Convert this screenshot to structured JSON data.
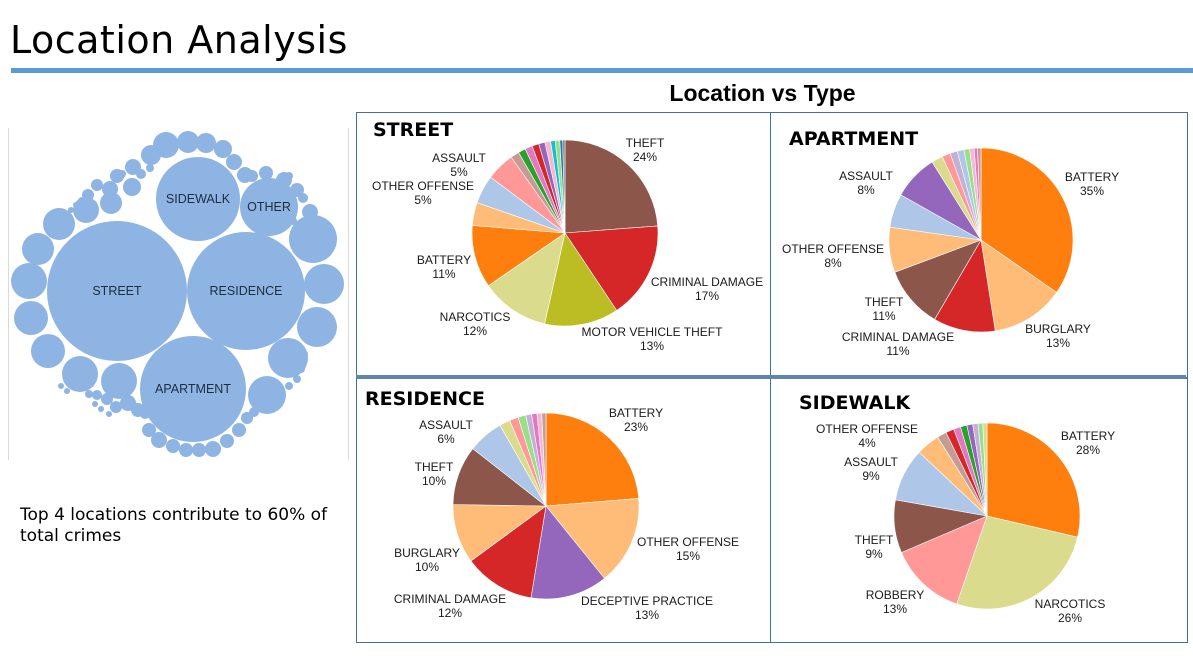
{
  "page": {
    "title": "Location Analysis",
    "section_title": "Location vs Type",
    "summary": "Top 4 locations contribute to 60% of total crimes"
  },
  "colors": {
    "accent": "#5b9bd5",
    "bubble": "#8eb4e3",
    "panel_border": "#41729b"
  },
  "chart_data": [
    {
      "type": "bubble",
      "labels": [
        "STREET",
        "RESIDENCE",
        "APARTMENT",
        "SIDEWALK",
        "OTHER"
      ]
    },
    {
      "type": "pie",
      "title": "STREET",
      "slices": [
        {
          "label": "THEFT",
          "value": 24,
          "color": "#8c564b",
          "show": true
        },
        {
          "label": "CRIMINAL DAMAGE",
          "value": 17,
          "color": "#d62728",
          "show": true
        },
        {
          "label": "MOTOR VEHICLE THEFT",
          "value": 13,
          "color": "#bcbd22",
          "show": true
        },
        {
          "label": "NARCOTICS",
          "value": 12,
          "color": "#dbdb8d",
          "show": true
        },
        {
          "label": "BATTERY",
          "value": 11,
          "color": "#ff7f0e",
          "show": true
        },
        {
          "label": "",
          "value": 4,
          "color": "#ffbb78",
          "show": false
        },
        {
          "label": "OTHER OFFENSE",
          "value": 5,
          "color": "#aec7e8",
          "show": true
        },
        {
          "label": "ASSAULT",
          "value": 5,
          "color": "#ff9896",
          "show": true
        },
        {
          "label": "",
          "value": 1.5,
          "color": "#c49c94",
          "show": false
        },
        {
          "label": "",
          "value": 1.3,
          "color": "#2ca02c",
          "show": false
        },
        {
          "label": "",
          "value": 1.3,
          "color": "#e377c2",
          "show": false
        },
        {
          "label": "",
          "value": 1.2,
          "color": "#d62728",
          "show": false
        },
        {
          "label": "",
          "value": 1.1,
          "color": "#9467bd",
          "show": false
        },
        {
          "label": "",
          "value": 1.0,
          "color": "#f7b6d2",
          "show": false
        },
        {
          "label": "",
          "value": 0.8,
          "color": "#17becf",
          "show": false
        },
        {
          "label": "",
          "value": 0.8,
          "color": "#98df8a",
          "show": false
        },
        {
          "label": "",
          "value": 0.5,
          "color": "#1f77b4",
          "show": false
        },
        {
          "label": "",
          "value": 0.4,
          "color": "#7f7f7f",
          "show": false
        }
      ]
    },
    {
      "type": "pie",
      "title": "APARTMENT",
      "slices": [
        {
          "label": "BATTERY",
          "value": 35,
          "color": "#ff7f0e",
          "show": true
        },
        {
          "label": "BURGLARY",
          "value": 13,
          "color": "#ffbb78",
          "show": true
        },
        {
          "label": "CRIMINAL DAMAGE",
          "value": 11,
          "color": "#d62728",
          "show": true
        },
        {
          "label": "THEFT",
          "value": 11,
          "color": "#8c564b",
          "show": true
        },
        {
          "label": "OTHER OFFENSE",
          "value": 8,
          "color": "#ffbb78",
          "show": true
        },
        {
          "label": "",
          "value": 6,
          "color": "#aec7e8",
          "show": false
        },
        {
          "label": "ASSAULT",
          "value": 8,
          "color": "#9467bd",
          "show": true
        },
        {
          "label": "",
          "value": 2,
          "color": "#dbdb8d",
          "show": false
        },
        {
          "label": "",
          "value": 1.5,
          "color": "#ff9896",
          "show": false
        },
        {
          "label": "",
          "value": 1.3,
          "color": "#c5b0d5",
          "show": false
        },
        {
          "label": "",
          "value": 1.2,
          "color": "#aec7e8",
          "show": false
        },
        {
          "label": "",
          "value": 1,
          "color": "#98df8a",
          "show": false
        },
        {
          "label": "",
          "value": 0.8,
          "color": "#f7b6d2",
          "show": false
        },
        {
          "label": "",
          "value": 0.6,
          "color": "#e377c2",
          "show": false
        },
        {
          "label": "",
          "value": 0.6,
          "color": "#c49c94",
          "show": false
        }
      ]
    },
    {
      "type": "pie",
      "title": "RESIDENCE",
      "slices": [
        {
          "label": "BATTERY",
          "value": 23,
          "color": "#ff7f0e",
          "show": true
        },
        {
          "label": "OTHER OFFENSE",
          "value": 15,
          "color": "#ffbb78",
          "show": true
        },
        {
          "label": "DECEPTIVE PRACTICE",
          "value": 13,
          "color": "#9467bd",
          "show": true
        },
        {
          "label": "CRIMINAL DAMAGE",
          "value": 12,
          "color": "#d62728",
          "show": true
        },
        {
          "label": "BURGLARY",
          "value": 10,
          "color": "#ffbb78",
          "show": true
        },
        {
          "label": "THEFT",
          "value": 10,
          "color": "#8c564b",
          "show": true
        },
        {
          "label": "ASSAULT",
          "value": 6,
          "color": "#aec7e8",
          "show": true
        },
        {
          "label": "",
          "value": 1.8,
          "color": "#dbdb8d",
          "show": false
        },
        {
          "label": "",
          "value": 1.5,
          "color": "#ff9896",
          "show": false
        },
        {
          "label": "",
          "value": 1.3,
          "color": "#98df8a",
          "show": false
        },
        {
          "label": "",
          "value": 1.0,
          "color": "#c5b0d5",
          "show": false
        },
        {
          "label": "",
          "value": 0.9,
          "color": "#e377c2",
          "show": false
        },
        {
          "label": "",
          "value": 0.8,
          "color": "#f7b6d2",
          "show": false
        },
        {
          "label": "",
          "value": 0.7,
          "color": "#c49c94",
          "show": false
        }
      ]
    },
    {
      "type": "pie",
      "title": "SIDEWALK",
      "slices": [
        {
          "label": "BATTERY",
          "value": 28,
          "color": "#ff7f0e",
          "show": true
        },
        {
          "label": "NARCOTICS",
          "value": 26,
          "color": "#dbdb8d",
          "show": true
        },
        {
          "label": "ROBBERY",
          "value": 13,
          "color": "#ff9896",
          "show": true
        },
        {
          "label": "THEFT",
          "value": 9,
          "color": "#8c564b",
          "show": true
        },
        {
          "label": "ASSAULT",
          "value": 9,
          "color": "#aec7e8",
          "show": true
        },
        {
          "label": "OTHER OFFENSE",
          "value": 4,
          "color": "#ffbb78",
          "show": true
        },
        {
          "label": "",
          "value": 1.6,
          "color": "#c49c94",
          "show": false
        },
        {
          "label": "",
          "value": 1.4,
          "color": "#d62728",
          "show": false
        },
        {
          "label": "",
          "value": 1.2,
          "color": "#e377c2",
          "show": false
        },
        {
          "label": "",
          "value": 1.1,
          "color": "#2ca02c",
          "show": false
        },
        {
          "label": "",
          "value": 1.0,
          "color": "#9467bd",
          "show": false
        },
        {
          "label": "",
          "value": 0.9,
          "color": "#c5b0d5",
          "show": false
        },
        {
          "label": "",
          "value": 0.8,
          "color": "#98df8a",
          "show": false
        },
        {
          "label": "",
          "value": 0.7,
          "color": "#dbdb8d",
          "show": false
        }
      ]
    }
  ]
}
